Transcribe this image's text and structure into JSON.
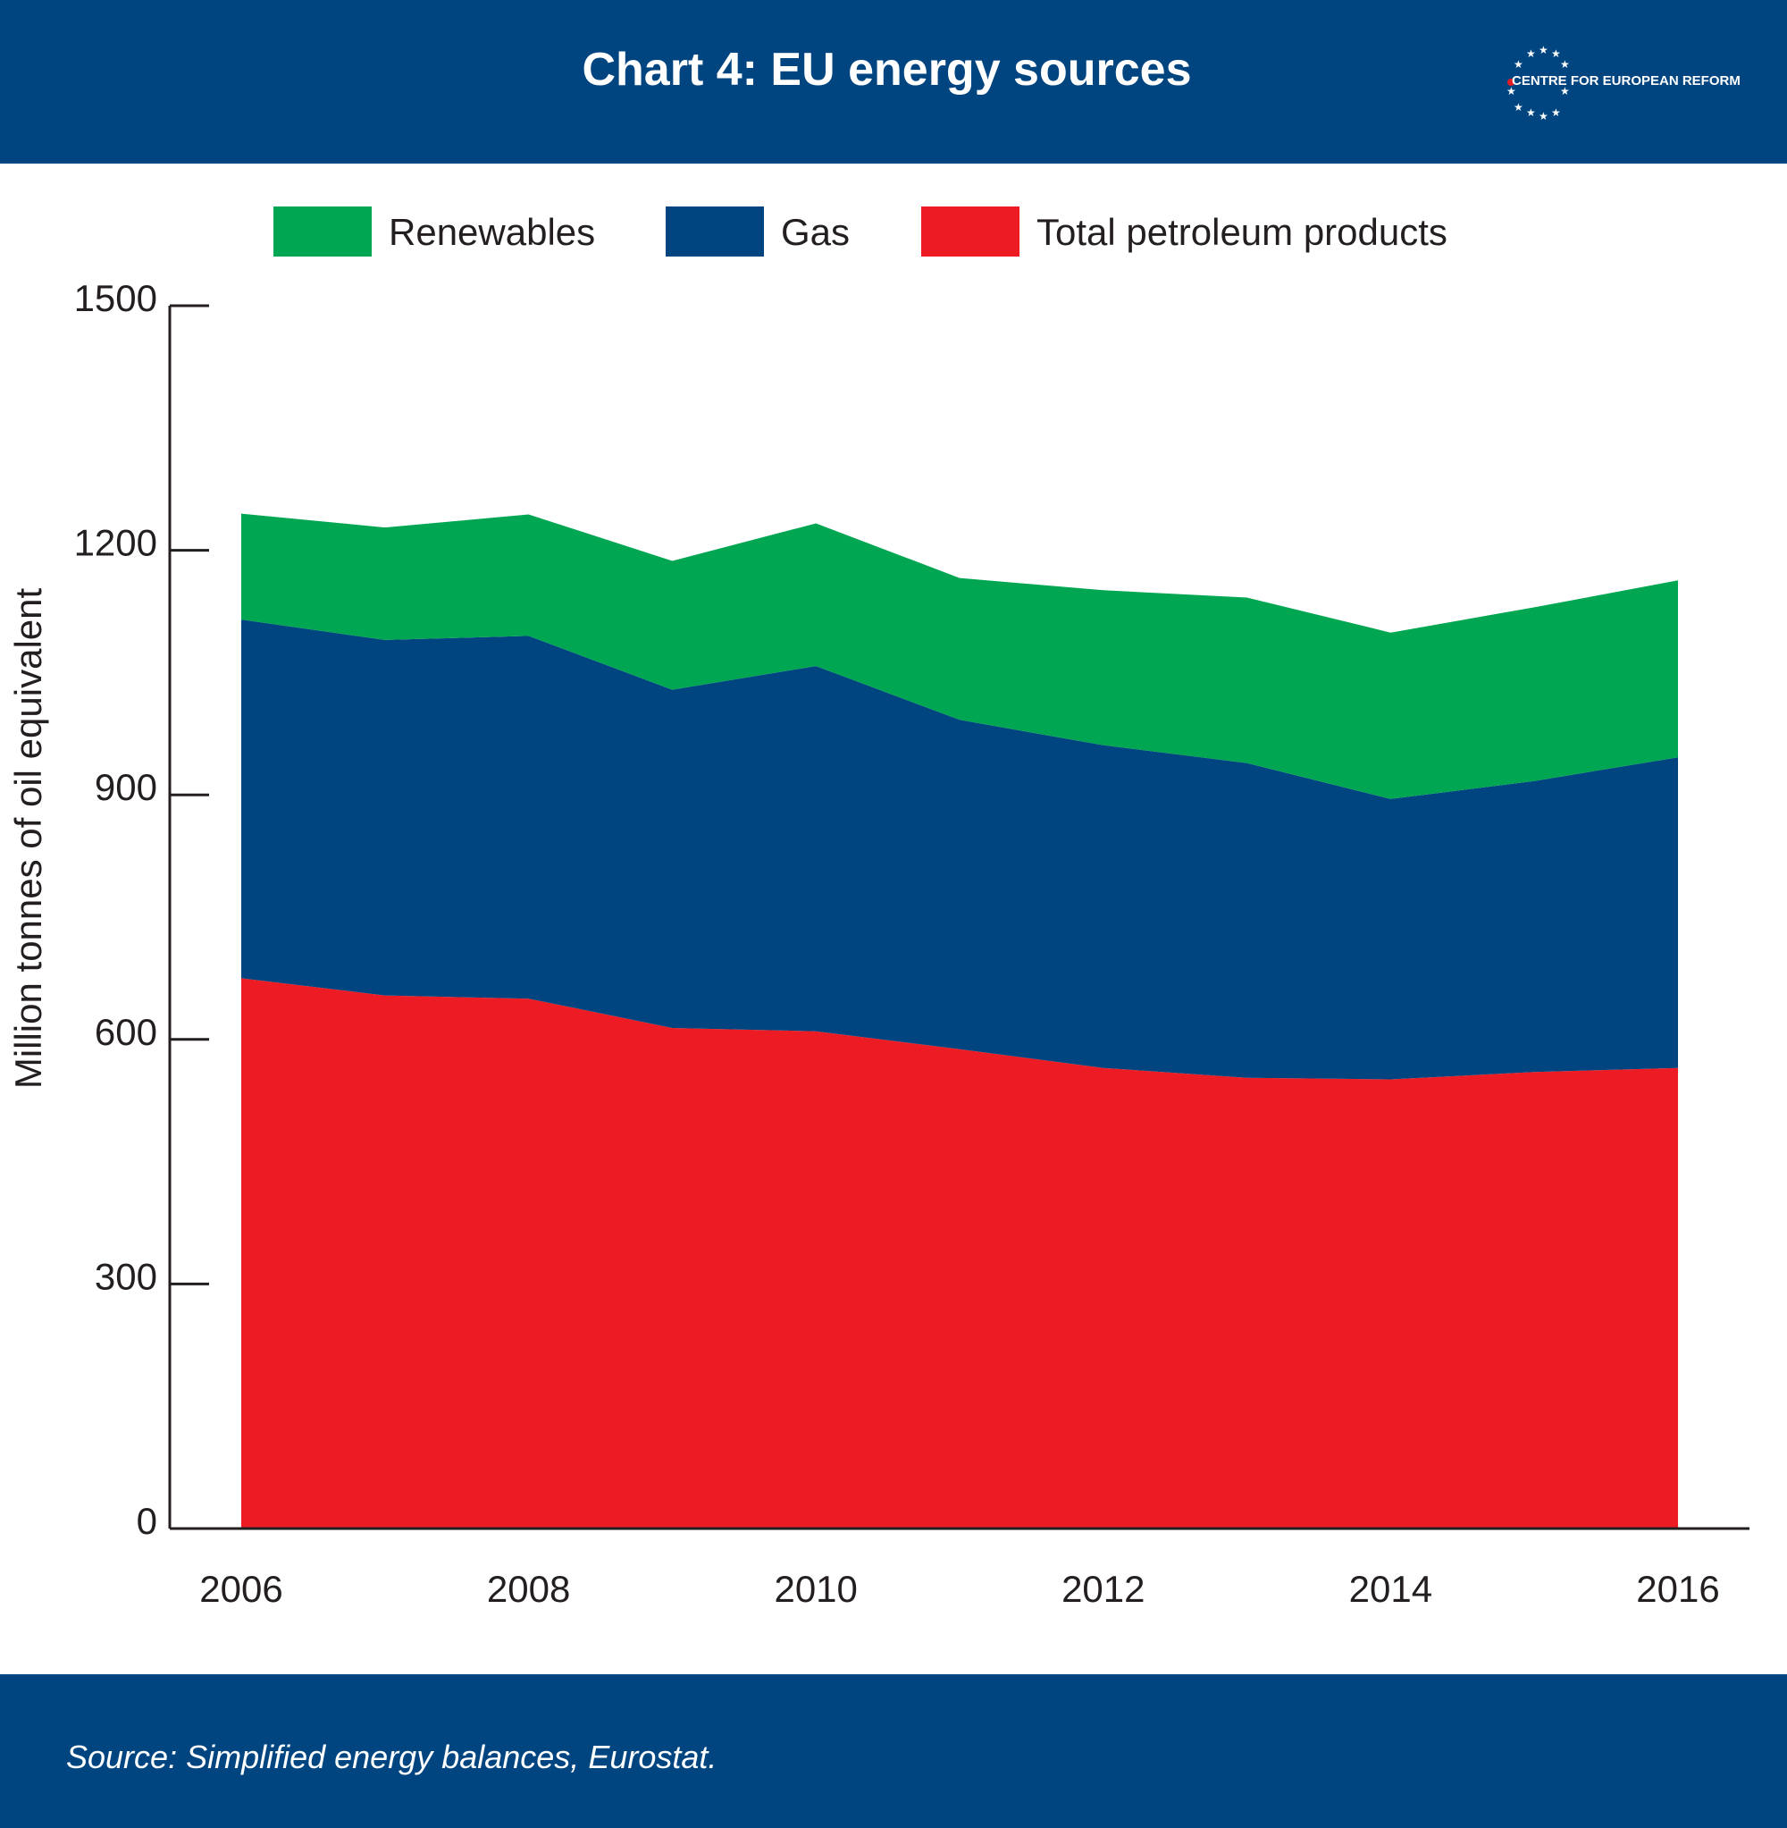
{
  "header": {
    "title": "Chart 4: EU energy sources"
  },
  "logo": {
    "text": "CENTRE FOR EUROPEAN REFORM",
    "accent_color": "#e31b23"
  },
  "footer": {
    "source": "Source: Simplified energy balances, Eurostat."
  },
  "chart_data": {
    "type": "area",
    "stacked": true,
    "title": "Chart 4: EU energy sources",
    "xlabel": "",
    "ylabel": "Million tonnes of oil equivalent",
    "x": [
      2006,
      2007,
      2008,
      2009,
      2010,
      2011,
      2012,
      2013,
      2014,
      2015,
      2016
    ],
    "x_ticks": [
      "2006",
      "2008",
      "2010",
      "2012",
      "2014",
      "2016"
    ],
    "y_ticks": [
      "0",
      "300",
      "600",
      "900",
      "1200",
      "1500"
    ],
    "ylim": [
      0,
      1500
    ],
    "legend_position": "top",
    "series": [
      {
        "name": "Total petroleum products",
        "color": "#ed1c24",
        "values": [
          675,
          654,
          650,
          614,
          610,
          588,
          565,
          553,
          551,
          560,
          565
        ]
      },
      {
        "name": "Gas",
        "color": "#004580",
        "values": [
          440,
          436,
          445,
          415,
          448,
          404,
          396,
          386,
          344,
          357,
          381
        ]
      },
      {
        "name": "Renewables",
        "color": "#00a651",
        "values": [
          130,
          138,
          149,
          158,
          175,
          174,
          190,
          203,
          204,
          213,
          217
        ]
      }
    ]
  }
}
